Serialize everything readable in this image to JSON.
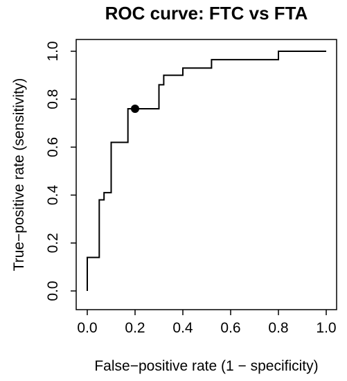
{
  "chart_data": {
    "type": "line",
    "title": "ROC curve: FTC vs FTA",
    "xlabel": "False−positive rate (1 − specificity)",
    "ylabel": "True−positive rate (sensitivity)",
    "xlim": [
      0,
      1
    ],
    "ylim": [
      0,
      1
    ],
    "x_ticks": [
      "0.0",
      "0.2",
      "0.4",
      "0.6",
      "0.8",
      "1.0"
    ],
    "y_ticks": [
      "0.0",
      "0.2",
      "0.4",
      "0.6",
      "0.8",
      "1.0"
    ],
    "grid": false,
    "legend": "none",
    "series": [
      {
        "style": "step",
        "color": "#000000",
        "points": [
          [
            0.0,
            0.0
          ],
          [
            0.0,
            0.14
          ],
          [
            0.05,
            0.14
          ],
          [
            0.05,
            0.38
          ],
          [
            0.07,
            0.38
          ],
          [
            0.07,
            0.41
          ],
          [
            0.1,
            0.41
          ],
          [
            0.1,
            0.62
          ],
          [
            0.17,
            0.62
          ],
          [
            0.17,
            0.76
          ],
          [
            0.3,
            0.76
          ],
          [
            0.3,
            0.86
          ],
          [
            0.32,
            0.86
          ],
          [
            0.32,
            0.9
          ],
          [
            0.4,
            0.9
          ],
          [
            0.4,
            0.93
          ],
          [
            0.52,
            0.93
          ],
          [
            0.52,
            0.965
          ],
          [
            0.8,
            0.965
          ],
          [
            0.8,
            1.0
          ],
          [
            1.0,
            1.0
          ]
        ]
      }
    ],
    "marker": {
      "x": 0.2,
      "y": 0.76,
      "shape": "filled-circle",
      "color": "#000000"
    }
  }
}
